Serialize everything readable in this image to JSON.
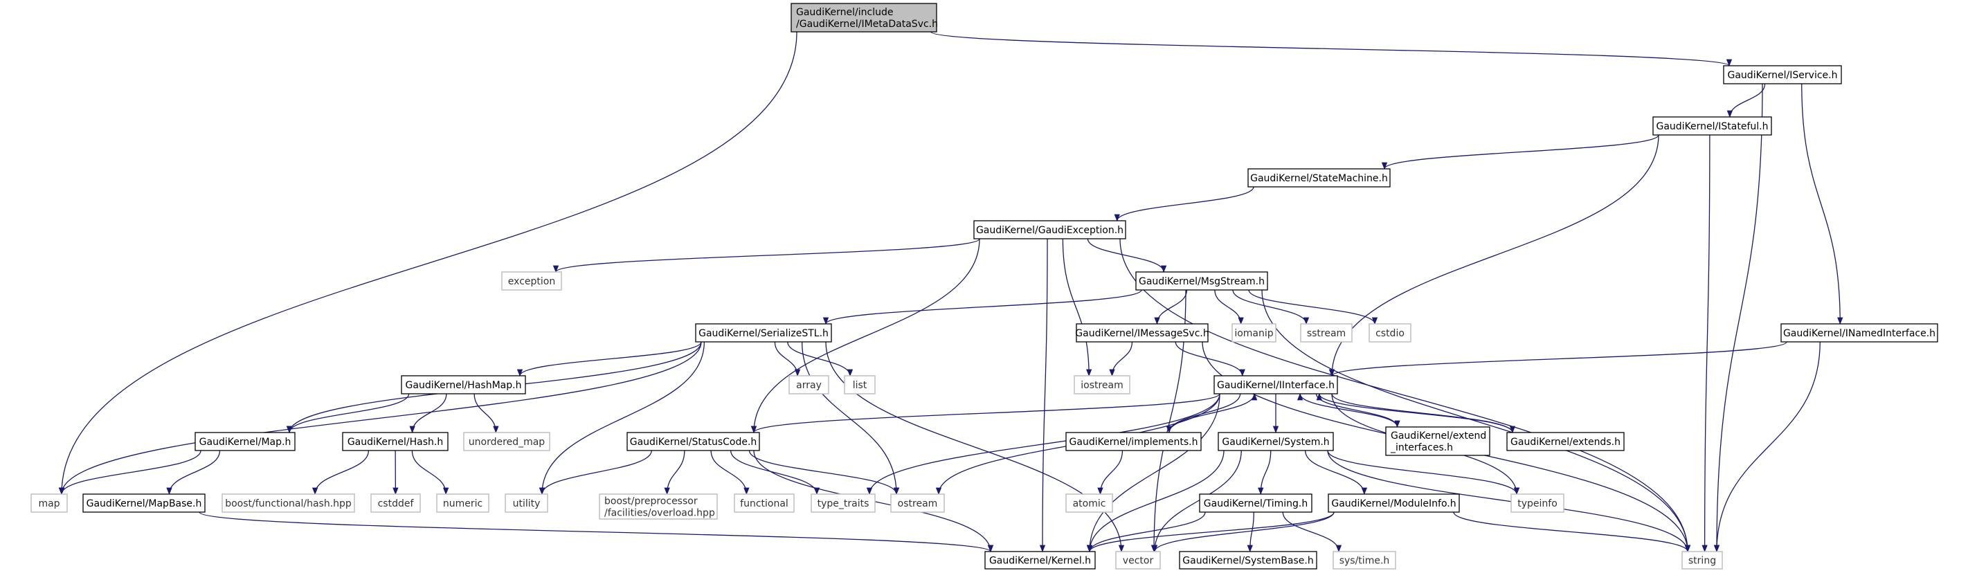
{
  "graph": {
    "type": "include-dependency-graph",
    "colors": {
      "edge": "#191970",
      "root_fill": "#bfbfbf",
      "node_border": "#000000",
      "external_border": "#bfbfbf",
      "node_fill": "#ffffff"
    },
    "nodes": [
      {
        "id": "root",
        "label": [
          "GaudiKernel/include",
          "/GaudiKernel/IMetaDataSvc.h"
        ],
        "kind": "root"
      },
      {
        "id": "IService",
        "label": [
          "GaudiKernel/IService.h"
        ],
        "kind": "file"
      },
      {
        "id": "IStateful",
        "label": [
          "GaudiKernel/IStateful.h"
        ],
        "kind": "file"
      },
      {
        "id": "StateMachine",
        "label": [
          "GaudiKernel/StateMachine.h"
        ],
        "kind": "file"
      },
      {
        "id": "GaudiException",
        "label": [
          "GaudiKernel/GaudiException.h"
        ],
        "kind": "file"
      },
      {
        "id": "exception",
        "label": [
          "exception"
        ],
        "kind": "external"
      },
      {
        "id": "MsgStream",
        "label": [
          "GaudiKernel/MsgStream.h"
        ],
        "kind": "file"
      },
      {
        "id": "SerializeSTL",
        "label": [
          "GaudiKernel/SerializeSTL.h"
        ],
        "kind": "file"
      },
      {
        "id": "IMessageSvc",
        "label": [
          "GaudiKernel/IMessageSvc.h"
        ],
        "kind": "file"
      },
      {
        "id": "iomanip",
        "label": [
          "iomanip"
        ],
        "kind": "external"
      },
      {
        "id": "sstream",
        "label": [
          "sstream"
        ],
        "kind": "external"
      },
      {
        "id": "cstdio",
        "label": [
          "cstdio"
        ],
        "kind": "external"
      },
      {
        "id": "INamedInterface",
        "label": [
          "GaudiKernel/INamedInterface.h"
        ],
        "kind": "file"
      },
      {
        "id": "HashMap",
        "label": [
          "GaudiKernel/HashMap.h"
        ],
        "kind": "file"
      },
      {
        "id": "array",
        "label": [
          "array"
        ],
        "kind": "external"
      },
      {
        "id": "list",
        "label": [
          "list"
        ],
        "kind": "external"
      },
      {
        "id": "iostream",
        "label": [
          "iostream"
        ],
        "kind": "external"
      },
      {
        "id": "IInterface",
        "label": [
          "GaudiKernel/IInterface.h"
        ],
        "kind": "file"
      },
      {
        "id": "MapH",
        "label": [
          "GaudiKernel/Map.h"
        ],
        "kind": "file"
      },
      {
        "id": "HashH",
        "label": [
          "GaudiKernel/Hash.h"
        ],
        "kind": "file"
      },
      {
        "id": "unordered_map",
        "label": [
          "unordered_map"
        ],
        "kind": "external"
      },
      {
        "id": "StatusCode",
        "label": [
          "GaudiKernel/StatusCode.h"
        ],
        "kind": "file"
      },
      {
        "id": "implements",
        "label": [
          "GaudiKernel/implements.h"
        ],
        "kind": "file"
      },
      {
        "id": "System",
        "label": [
          "GaudiKernel/System.h"
        ],
        "kind": "file"
      },
      {
        "id": "extend_interfaces",
        "label": [
          "GaudiKernel/extend",
          "_interfaces.h"
        ],
        "kind": "file"
      },
      {
        "id": "extends",
        "label": [
          "GaudiKernel/extends.h"
        ],
        "kind": "file"
      },
      {
        "id": "map",
        "label": [
          "map"
        ],
        "kind": "external"
      },
      {
        "id": "MapBase",
        "label": [
          "GaudiKernel/MapBase.h"
        ],
        "kind": "file"
      },
      {
        "id": "boost_hash",
        "label": [
          "boost/functional/hash.hpp"
        ],
        "kind": "external"
      },
      {
        "id": "cstddef",
        "label": [
          "cstddef"
        ],
        "kind": "external"
      },
      {
        "id": "numeric",
        "label": [
          "numeric"
        ],
        "kind": "external"
      },
      {
        "id": "utility",
        "label": [
          "utility"
        ],
        "kind": "external"
      },
      {
        "id": "boost_pp",
        "label": [
          "boost/preprocessor",
          "/facilities/overload.hpp"
        ],
        "kind": "external"
      },
      {
        "id": "functional",
        "label": [
          "functional"
        ],
        "kind": "external"
      },
      {
        "id": "type_traits",
        "label": [
          "type_traits"
        ],
        "kind": "external"
      },
      {
        "id": "ostream",
        "label": [
          "ostream"
        ],
        "kind": "external"
      },
      {
        "id": "atomic",
        "label": [
          "atomic"
        ],
        "kind": "external"
      },
      {
        "id": "Timing",
        "label": [
          "GaudiKernel/Timing.h"
        ],
        "kind": "file"
      },
      {
        "id": "ModuleInfo",
        "label": [
          "GaudiKernel/ModuleInfo.h"
        ],
        "kind": "file"
      },
      {
        "id": "typeinfo",
        "label": [
          "typeinfo"
        ],
        "kind": "external"
      },
      {
        "id": "Kernel",
        "label": [
          "GaudiKernel/Kernel.h"
        ],
        "kind": "file"
      },
      {
        "id": "vector",
        "label": [
          "vector"
        ],
        "kind": "external"
      },
      {
        "id": "SystemBase",
        "label": [
          "GaudiKernel/SystemBase.h"
        ],
        "kind": "file"
      },
      {
        "id": "systime",
        "label": [
          "sys/time.h"
        ],
        "kind": "external"
      },
      {
        "id": "string",
        "label": [
          "string"
        ],
        "kind": "external"
      }
    ],
    "edges": [
      [
        "root",
        "map"
      ],
      [
        "root",
        "IService"
      ],
      [
        "IService",
        "IStateful"
      ],
      [
        "IService",
        "INamedInterface"
      ],
      [
        "IService",
        "string"
      ],
      [
        "IStateful",
        "StateMachine"
      ],
      [
        "IStateful",
        "IInterface"
      ],
      [
        "IStateful",
        "string"
      ],
      [
        "StateMachine",
        "GaudiException"
      ],
      [
        "GaudiException",
        "exception"
      ],
      [
        "GaudiException",
        "Kernel"
      ],
      [
        "GaudiException",
        "StatusCode"
      ],
      [
        "GaudiException",
        "iostream"
      ],
      [
        "GaudiException",
        "MsgStream"
      ],
      [
        "GaudiException",
        "string"
      ],
      [
        "MsgStream",
        "SerializeSTL"
      ],
      [
        "MsgStream",
        "IMessageSvc"
      ],
      [
        "MsgStream",
        "iomanip"
      ],
      [
        "MsgStream",
        "sstream"
      ],
      [
        "MsgStream",
        "cstdio"
      ],
      [
        "MsgStream",
        "vector"
      ],
      [
        "MsgStream",
        "string"
      ],
      [
        "IMessageSvc",
        "iostream"
      ],
      [
        "IMessageSvc",
        "IInterface"
      ],
      [
        "IMessageSvc",
        "string"
      ],
      [
        "INamedInterface",
        "IInterface"
      ],
      [
        "INamedInterface",
        "string"
      ],
      [
        "SerializeSTL",
        "map"
      ],
      [
        "SerializeSTL",
        "MapH"
      ],
      [
        "SerializeSTL",
        "HashMap"
      ],
      [
        "SerializeSTL",
        "utility"
      ],
      [
        "SerializeSTL",
        "array"
      ],
      [
        "SerializeSTL",
        "list"
      ],
      [
        "SerializeSTL",
        "ostream"
      ],
      [
        "SerializeSTL",
        "vector"
      ],
      [
        "HashMap",
        "MapH"
      ],
      [
        "HashMap",
        "HashH"
      ],
      [
        "HashMap",
        "unordered_map"
      ],
      [
        "MapH",
        "map"
      ],
      [
        "MapH",
        "MapBase"
      ],
      [
        "HashH",
        "boost_hash"
      ],
      [
        "HashH",
        "cstddef"
      ],
      [
        "HashH",
        "numeric"
      ],
      [
        "MapBase",
        "Kernel"
      ],
      [
        "StatusCode",
        "utility"
      ],
      [
        "StatusCode",
        "boost_pp"
      ],
      [
        "StatusCode",
        "functional"
      ],
      [
        "StatusCode",
        "type_traits"
      ],
      [
        "StatusCode",
        "ostream"
      ],
      [
        "StatusCode",
        "Kernel"
      ],
      [
        "IInterface",
        "StatusCode"
      ],
      [
        "IInterface",
        "type_traits"
      ],
      [
        "IInterface",
        "ostream"
      ],
      [
        "IInterface",
        "Kernel"
      ],
      [
        "IInterface",
        "implements"
      ],
      [
        "IInterface",
        "System"
      ],
      [
        "IInterface",
        "extend_interfaces"
      ],
      [
        "IInterface",
        "extends"
      ],
      [
        "IInterface",
        "typeinfo"
      ],
      [
        "implements",
        "IInterface"
      ],
      [
        "extend_interfaces",
        "IInterface"
      ],
      [
        "extends",
        "IInterface"
      ],
      [
        "implements",
        "atomic"
      ],
      [
        "System",
        "Kernel"
      ],
      [
        "System",
        "vector"
      ],
      [
        "System",
        "Timing"
      ],
      [
        "System",
        "ModuleInfo"
      ],
      [
        "System",
        "typeinfo"
      ],
      [
        "System",
        "string"
      ],
      [
        "Timing",
        "Kernel"
      ],
      [
        "Timing",
        "SystemBase"
      ],
      [
        "Timing",
        "systime"
      ],
      [
        "ModuleInfo",
        "Kernel"
      ],
      [
        "ModuleInfo",
        "vector"
      ],
      [
        "ModuleInfo",
        "string"
      ]
    ]
  }
}
